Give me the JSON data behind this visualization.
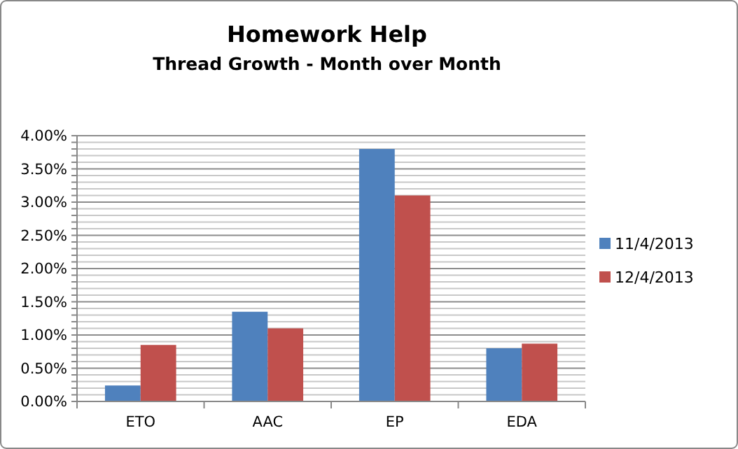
{
  "chart_data": {
    "type": "bar",
    "title": "Homework Help",
    "subtitle": "Thread Growth - Month over Month",
    "categories": [
      "ETO",
      "AAC",
      "EP",
      "EDA"
    ],
    "series": [
      {
        "name": "11/4/2013",
        "color": "#4f81bd",
        "values": [
          0.24,
          1.35,
          3.8,
          0.8
        ]
      },
      {
        "name": "12/4/2013",
        "color": "#c0504d",
        "values": [
          0.85,
          1.1,
          3.1,
          0.87
        ]
      }
    ],
    "ylim": [
      0,
      4
    ],
    "yticks": [
      {
        "value": 0,
        "label": "0.00%"
      },
      {
        "value": 0.1,
        "label": null
      },
      {
        "value": 0.2,
        "label": null
      },
      {
        "value": 0.3,
        "label": null
      },
      {
        "value": 0.4,
        "label": null
      },
      {
        "value": 0.5,
        "label": "0.50%"
      },
      {
        "value": 0.6,
        "label": null
      },
      {
        "value": 0.7,
        "label": null
      },
      {
        "value": 0.8,
        "label": null
      },
      {
        "value": 0.9,
        "label": null
      },
      {
        "value": 1,
        "label": "1.00%"
      },
      {
        "value": 1.1,
        "label": null
      },
      {
        "value": 1.2,
        "label": null
      },
      {
        "value": 1.3,
        "label": null
      },
      {
        "value": 1.4,
        "label": null
      },
      {
        "value": 1.5,
        "label": "1.50%"
      },
      {
        "value": 1.6,
        "label": null
      },
      {
        "value": 1.7,
        "label": null
      },
      {
        "value": 1.8,
        "label": null
      },
      {
        "value": 1.9,
        "label": null
      },
      {
        "value": 2,
        "label": "2.00%"
      },
      {
        "value": 2.1,
        "label": null
      },
      {
        "value": 2.2,
        "label": null
      },
      {
        "value": 2.3,
        "label": null
      },
      {
        "value": 2.4,
        "label": null
      },
      {
        "value": 2.5,
        "label": "2.50%"
      },
      {
        "value": 2.6,
        "label": null
      },
      {
        "value": 2.7,
        "label": null
      },
      {
        "value": 2.8,
        "label": null
      },
      {
        "value": 2.9,
        "label": null
      },
      {
        "value": 3,
        "label": "3.00%"
      },
      {
        "value": 3.1,
        "label": null
      },
      {
        "value": 3.2,
        "label": null
      },
      {
        "value": 3.3,
        "label": null
      },
      {
        "value": 3.4,
        "label": null
      },
      {
        "value": 3.5,
        "label": "3.50%"
      },
      {
        "value": 3.6,
        "label": null
      },
      {
        "value": 3.7,
        "label": null
      },
      {
        "value": 3.8,
        "label": null
      },
      {
        "value": 3.9,
        "label": null
      },
      {
        "value": 4,
        "label": "4.00%"
      }
    ],
    "grid": true,
    "legend": "right"
  }
}
